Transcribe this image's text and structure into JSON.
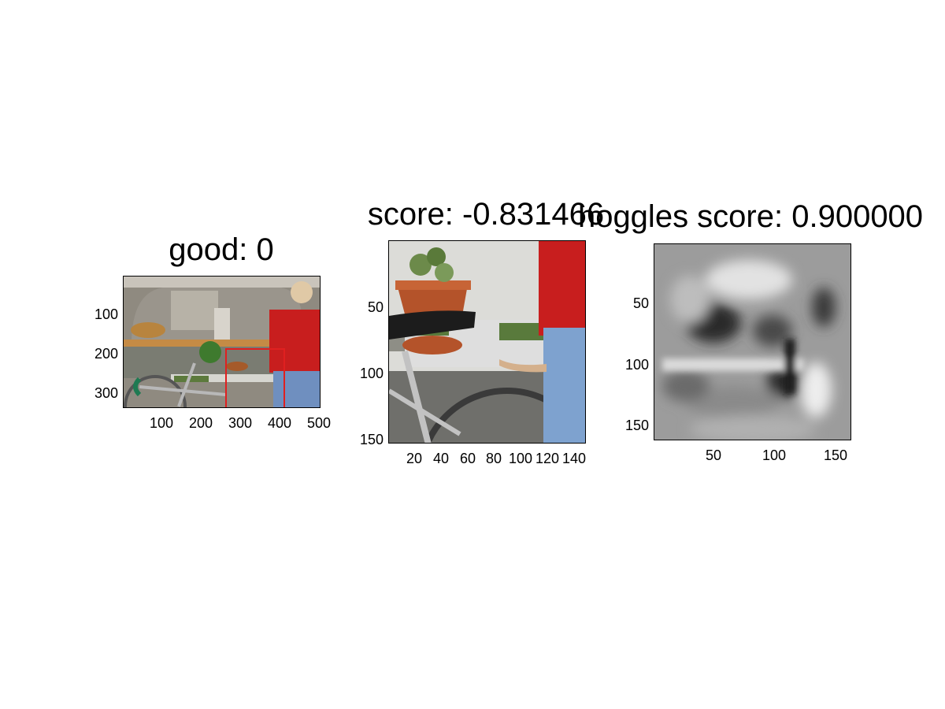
{
  "panels": [
    {
      "title": "good: 0",
      "y_ticks": [
        "100",
        "200",
        "300"
      ],
      "x_ticks": [
        "100",
        "200",
        "300",
        "400",
        "500"
      ],
      "image": "kitchen scene with bicycle and person",
      "box_color": "#e02020"
    },
    {
      "title": "score: -0.831466",
      "y_ticks": [
        "50",
        "100",
        "150"
      ],
      "x_ticks": [
        "20",
        "40",
        "60",
        "80",
        "100",
        "120",
        "140"
      ],
      "image": "cropped patch: potted plant on counter, bicycle seat, person"
    },
    {
      "title": "hoggles score: 0.900000",
      "y_ticks": [
        "50",
        "100",
        "150"
      ],
      "x_ticks": [
        "50",
        "100",
        "150"
      ],
      "image": "grayscale HOG inversion visualization"
    }
  ]
}
